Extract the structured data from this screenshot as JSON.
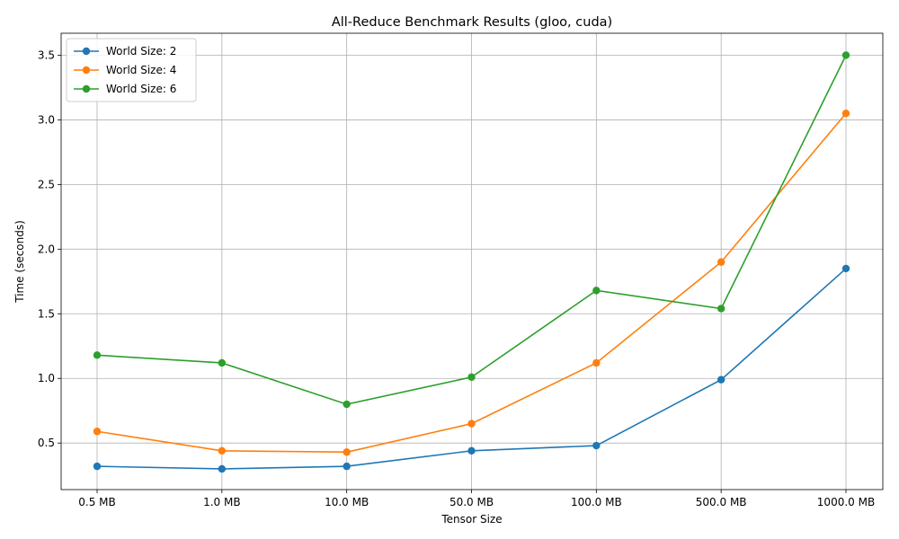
{
  "chart_data": {
    "type": "line",
    "title": "All-Reduce Benchmark Results (gloo, cuda)",
    "xlabel": "Tensor Size",
    "ylabel": "Time (seconds)",
    "categories": [
      "0.5 MB",
      "1.0 MB",
      "10.0 MB",
      "50.0 MB",
      "100.0 MB",
      "500.0 MB",
      "1000.0 MB"
    ],
    "yticks": [
      "0.5",
      "1.0",
      "1.5",
      "2.0",
      "2.5",
      "3.0",
      "3.5"
    ],
    "ytick_values": [
      0.5,
      1.0,
      1.5,
      2.0,
      2.5,
      3.0,
      3.5
    ],
    "ylim": [
      0.14,
      3.67
    ],
    "grid": true,
    "legend_position": "upper-left",
    "series": [
      {
        "name": "World Size: 2",
        "color": "#1f77b4",
        "values": [
          0.32,
          0.3,
          0.32,
          0.44,
          0.48,
          0.99,
          1.85
        ]
      },
      {
        "name": "World Size: 4",
        "color": "#ff7f0e",
        "values": [
          0.59,
          0.44,
          0.43,
          0.65,
          1.12,
          1.9,
          3.05
        ]
      },
      {
        "name": "World Size: 6",
        "color": "#2ca02c",
        "values": [
          1.18,
          1.12,
          0.8,
          1.01,
          1.68,
          1.54,
          3.5
        ]
      }
    ]
  }
}
